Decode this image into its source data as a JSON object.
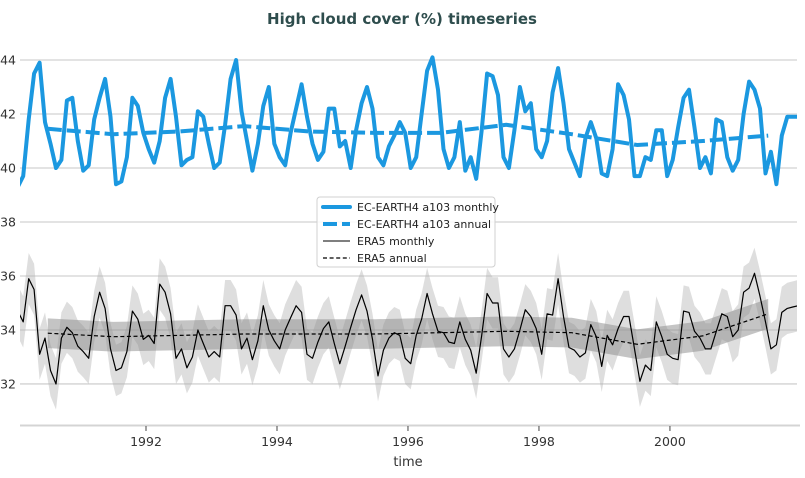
{
  "chart_data": {
    "type": "line",
    "title": "High cloud cover (%) timeseries",
    "xlabel": "time",
    "ylabel": "",
    "xlim": [
      "1990-01",
      "2001-12"
    ],
    "ylim": [
      30.5,
      44.7
    ],
    "x_ticks": [
      "1992",
      "1994",
      "1996",
      "1998",
      "2000"
    ],
    "y_ticks": [
      "32",
      "34",
      "36",
      "38",
      "40",
      "42",
      "44"
    ],
    "grid": "horizontal",
    "legend_position": "center",
    "colors": {
      "ec_earth": "#1b98e0",
      "era5": "#000000",
      "era5_band": "#b0b0b0"
    },
    "series": [
      {
        "name": "EC-EARTH4 a103 monthly",
        "frequency": "monthly",
        "values": {
          "1990": [
            39.3,
            39.7,
            41.8,
            43.5,
            43.9,
            41.7,
            40.9,
            40.0,
            40.3,
            42.5,
            42.6,
            41.0
          ],
          "1991": [
            39.9,
            40.1,
            41.8,
            42.6,
            43.3,
            41.9,
            39.4,
            39.5,
            40.4,
            42.6,
            42.3,
            41.3
          ],
          "1992": [
            40.7,
            40.2,
            41.0,
            42.6,
            43.3,
            41.9,
            40.1,
            40.3,
            40.4,
            42.1,
            41.9,
            40.9
          ],
          "1993": [
            40.0,
            40.2,
            41.6,
            43.3,
            44.0,
            42.1,
            41.0,
            39.9,
            40.9,
            42.3,
            43.0,
            40.9
          ],
          "1994": [
            40.4,
            40.1,
            41.3,
            42.2,
            43.1,
            41.9,
            40.9,
            40.3,
            40.6,
            42.2,
            42.2,
            40.8
          ],
          "1995": [
            41.0,
            40.0,
            41.4,
            42.4,
            43.0,
            42.2,
            40.4,
            40.1,
            40.8,
            41.2,
            41.7,
            41.3
          ],
          "1996": [
            40.0,
            40.4,
            42.0,
            43.6,
            44.1,
            42.9,
            40.7,
            40.0,
            40.4,
            41.7,
            39.9,
            40.4
          ],
          "1997": [
            39.6,
            41.4,
            43.5,
            43.4,
            42.7,
            40.4,
            40.0,
            41.4,
            43.0,
            42.1,
            42.4,
            40.7
          ],
          "1998": [
            40.4,
            41.0,
            42.8,
            43.7,
            42.4,
            40.7,
            40.2,
            39.7,
            41.1,
            41.7,
            41.1,
            39.8
          ],
          "1999": [
            39.7,
            40.7,
            43.1,
            42.7,
            41.8,
            39.7,
            39.7,
            40.4,
            40.3,
            41.4,
            41.4,
            39.7
          ],
          "2000": [
            40.3,
            41.5,
            42.6,
            42.9,
            41.5,
            40.0,
            40.4,
            39.8,
            41.8,
            41.7,
            40.4,
            39.9
          ],
          "2001": [
            40.3,
            42.0,
            43.2,
            42.9,
            42.2,
            39.8,
            40.6,
            39.4,
            41.2,
            41.9,
            41.9,
            41.9
          ]
        }
      },
      {
        "name": "EC-EARTH4 a103 annual",
        "frequency": "annual",
        "years": [
          1990,
          1991,
          1992,
          1993,
          1994,
          1995,
          1996,
          1997,
          1998,
          1999,
          2000,
          2001
        ],
        "values": [
          41.45,
          41.25,
          41.35,
          41.55,
          41.35,
          41.3,
          41.3,
          41.6,
          41.25,
          40.85,
          41.0,
          41.2
        ]
      },
      {
        "name": "ERA5 monthly",
        "frequency": "monthly",
        "spread": 0.95,
        "values": {
          "1990": [
            34.7,
            34.3,
            35.9,
            35.5,
            33.1,
            33.7,
            32.5,
            32.0,
            33.7,
            34.1,
            33.9,
            33.4
          ],
          "1991": [
            33.2,
            32.95,
            34.5,
            35.4,
            34.8,
            33.3,
            32.5,
            32.6,
            33.2,
            34.7,
            34.4,
            33.65
          ],
          "1992": [
            33.8,
            33.5,
            35.7,
            35.4,
            34.6,
            32.95,
            33.3,
            32.6,
            33.0,
            34.0,
            33.5,
            33.0
          ],
          "1993": [
            33.2,
            33.0,
            34.9,
            34.9,
            34.55,
            33.3,
            33.7,
            32.9,
            33.6,
            34.9,
            34.0,
            33.6
          ],
          "1994": [
            33.3,
            34.0,
            34.45,
            34.9,
            34.65,
            33.1,
            32.95,
            33.55,
            34.05,
            34.3,
            33.5,
            32.75
          ],
          "1995": [
            33.4,
            34.1,
            34.75,
            35.3,
            34.7,
            33.65,
            32.3,
            33.25,
            33.7,
            33.9,
            33.8,
            32.95
          ],
          "1996": [
            32.75,
            33.8,
            34.4,
            35.35,
            34.6,
            33.95,
            33.9,
            33.55,
            33.5,
            34.3,
            33.65,
            33.25
          ],
          "1997": [
            32.4,
            33.8,
            35.35,
            35.0,
            35.0,
            33.3,
            33.0,
            33.3,
            34.0,
            34.75,
            34.5,
            34.05
          ],
          "1998": [
            33.1,
            34.6,
            34.55,
            35.9,
            34.5,
            33.35,
            33.25,
            33.0,
            33.15,
            34.2,
            33.75,
            32.65
          ],
          "1999": [
            33.8,
            33.45,
            34.05,
            34.5,
            34.5,
            33.3,
            32.1,
            32.7,
            32.5,
            34.3,
            33.75,
            33.1
          ],
          "2000": [
            32.95,
            32.9,
            34.7,
            34.65,
            33.95,
            33.7,
            33.3,
            33.3,
            33.95,
            34.6,
            34.5,
            33.75
          ],
          "2001": [
            34.0,
            35.4,
            35.55,
            36.1,
            35.25,
            34.3,
            33.3,
            33.45,
            34.65,
            34.8,
            34.85,
            34.9
          ]
        }
      },
      {
        "name": "ERA5 annual",
        "frequency": "annual",
        "spread": 0.55,
        "years": [
          1990,
          1991,
          1992,
          1993,
          1994,
          1995,
          1996,
          1997,
          1998,
          1999,
          2000,
          2001
        ],
        "values": [
          33.88,
          33.75,
          33.8,
          33.85,
          33.85,
          33.85,
          33.9,
          33.95,
          33.9,
          33.47,
          33.78,
          34.6
        ]
      }
    ]
  }
}
